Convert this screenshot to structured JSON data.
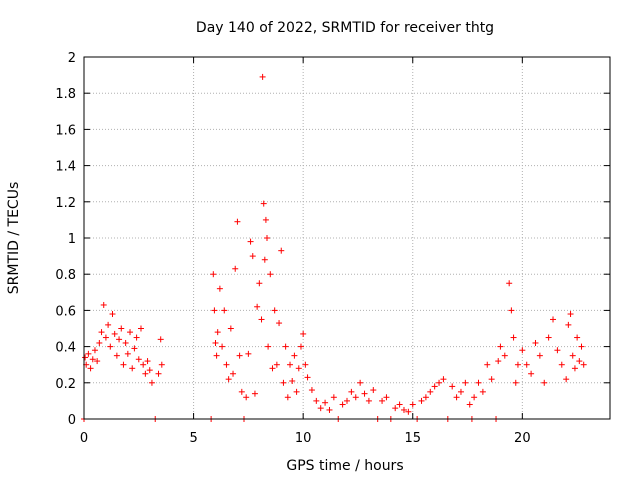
{
  "chart_data": {
    "type": "scatter",
    "title": "Day 140 of 2022, SRMTID for receiver thtg",
    "xlabel": "GPS time / hours",
    "ylabel": "SRMTID / TECUs",
    "xlim": [
      0,
      24
    ],
    "ylim": [
      0,
      2
    ],
    "grid": true,
    "marker": "+",
    "series_color": "#ff0000",
    "x_ticks": [
      {
        "value": 0,
        "label": "0"
      },
      {
        "value": 5,
        "label": "5"
      },
      {
        "value": 10,
        "label": "10"
      },
      {
        "value": 15,
        "label": "15"
      },
      {
        "value": 20,
        "label": "20"
      }
    ],
    "y_ticks": [
      {
        "value": 0,
        "label": "0"
      },
      {
        "value": 0.2,
        "label": "0.2"
      },
      {
        "value": 0.4,
        "label": "0.4"
      },
      {
        "value": 0.6,
        "label": "0.6"
      },
      {
        "value": 0.8,
        "label": "0.8"
      },
      {
        "value": 1,
        "label": "1"
      },
      {
        "value": 1.2,
        "label": "1.2"
      },
      {
        "value": 1.4,
        "label": "1.4"
      },
      {
        "value": 1.6,
        "label": "1.6"
      },
      {
        "value": 1.8,
        "label": "1.8"
      },
      {
        "value": 2,
        "label": "2"
      }
    ],
    "points": [
      [
        0.0,
        0.0
      ],
      [
        0.05,
        0.34
      ],
      [
        0.1,
        0.3
      ],
      [
        0.2,
        0.36
      ],
      [
        0.3,
        0.28
      ],
      [
        0.4,
        0.33
      ],
      [
        0.5,
        0.38
      ],
      [
        0.6,
        0.32
      ],
      [
        0.7,
        0.42
      ],
      [
        0.8,
        0.48
      ],
      [
        0.9,
        0.63
      ],
      [
        1.0,
        0.45
      ],
      [
        1.1,
        0.52
      ],
      [
        1.2,
        0.4
      ],
      [
        1.3,
        0.58
      ],
      [
        1.4,
        0.47
      ],
      [
        1.5,
        0.35
      ],
      [
        1.6,
        0.44
      ],
      [
        1.7,
        0.5
      ],
      [
        1.8,
        0.3
      ],
      [
        1.9,
        0.42
      ],
      [
        2.0,
        0.36
      ],
      [
        2.1,
        0.48
      ],
      [
        2.2,
        0.28
      ],
      [
        2.3,
        0.39
      ],
      [
        2.4,
        0.45
      ],
      [
        2.5,
        0.33
      ],
      [
        2.6,
        0.5
      ],
      [
        2.7,
        0.3
      ],
      [
        2.8,
        0.25
      ],
      [
        2.9,
        0.32
      ],
      [
        3.0,
        0.27
      ],
      [
        3.1,
        0.2
      ],
      [
        3.25,
        0.0
      ],
      [
        3.4,
        0.25
      ],
      [
        3.5,
        0.44
      ],
      [
        3.55,
        0.3
      ],
      [
        5.8,
        0.0
      ],
      [
        5.9,
        0.8
      ],
      [
        5.95,
        0.6
      ],
      [
        6.0,
        0.42
      ],
      [
        6.05,
        0.35
      ],
      [
        6.1,
        0.48
      ],
      [
        6.2,
        0.72
      ],
      [
        6.3,
        0.4
      ],
      [
        6.4,
        0.6
      ],
      [
        6.5,
        0.3
      ],
      [
        6.6,
        0.22
      ],
      [
        6.7,
        0.5
      ],
      [
        6.8,
        0.25
      ],
      [
        6.9,
        0.83
      ],
      [
        7.0,
        1.09
      ],
      [
        7.1,
        0.35
      ],
      [
        7.2,
        0.15
      ],
      [
        7.3,
        0.0
      ],
      [
        7.4,
        0.12
      ],
      [
        7.5,
        0.36
      ],
      [
        7.6,
        0.98
      ],
      [
        7.7,
        0.9
      ],
      [
        7.8,
        0.14
      ],
      [
        7.9,
        0.62
      ],
      [
        8.0,
        0.75
      ],
      [
        8.1,
        0.55
      ],
      [
        8.15,
        1.89
      ],
      [
        8.2,
        1.19
      ],
      [
        8.25,
        0.88
      ],
      [
        8.3,
        1.1
      ],
      [
        8.35,
        1.0
      ],
      [
        8.4,
        0.4
      ],
      [
        8.5,
        0.8
      ],
      [
        8.6,
        0.28
      ],
      [
        8.7,
        0.6
      ],
      [
        8.8,
        0.3
      ],
      [
        8.9,
        0.53
      ],
      [
        9.0,
        0.93
      ],
      [
        9.1,
        0.2
      ],
      [
        9.2,
        0.4
      ],
      [
        9.3,
        0.12
      ],
      [
        9.4,
        0.3
      ],
      [
        9.5,
        0.21
      ],
      [
        9.6,
        0.35
      ],
      [
        9.7,
        0.15
      ],
      [
        9.8,
        0.28
      ],
      [
        9.9,
        0.4
      ],
      [
        10.0,
        0.47
      ],
      [
        10.1,
        0.3
      ],
      [
        10.2,
        0.23
      ],
      [
        10.4,
        0.16
      ],
      [
        10.6,
        0.1
      ],
      [
        10.8,
        0.06
      ],
      [
        11.0,
        0.09
      ],
      [
        11.2,
        0.05
      ],
      [
        11.4,
        0.12
      ],
      [
        11.6,
        0.0
      ],
      [
        11.8,
        0.08
      ],
      [
        12.0,
        0.1
      ],
      [
        12.2,
        0.15
      ],
      [
        12.4,
        0.12
      ],
      [
        12.6,
        0.2
      ],
      [
        12.8,
        0.14
      ],
      [
        13.0,
        0.1
      ],
      [
        13.2,
        0.16
      ],
      [
        13.4,
        0.0
      ],
      [
        13.6,
        0.1
      ],
      [
        13.8,
        0.12
      ],
      [
        14.0,
        0.0
      ],
      [
        14.2,
        0.06
      ],
      [
        14.4,
        0.08
      ],
      [
        14.6,
        0.05
      ],
      [
        14.8,
        0.04
      ],
      [
        15.0,
        0.08
      ],
      [
        15.2,
        0.0
      ],
      [
        15.4,
        0.1
      ],
      [
        15.6,
        0.12
      ],
      [
        15.8,
        0.15
      ],
      [
        16.0,
        0.18
      ],
      [
        16.2,
        0.2
      ],
      [
        16.4,
        0.22
      ],
      [
        16.6,
        0.0
      ],
      [
        16.8,
        0.18
      ],
      [
        17.0,
        0.12
      ],
      [
        17.2,
        0.15
      ],
      [
        17.4,
        0.2
      ],
      [
        17.6,
        0.08
      ],
      [
        17.7,
        0.0
      ],
      [
        17.8,
        0.12
      ],
      [
        18.0,
        0.2
      ],
      [
        18.2,
        0.15
      ],
      [
        18.4,
        0.3
      ],
      [
        18.6,
        0.22
      ],
      [
        18.8,
        0.0
      ],
      [
        18.9,
        0.32
      ],
      [
        19.0,
        0.4
      ],
      [
        19.2,
        0.35
      ],
      [
        19.4,
        0.75
      ],
      [
        19.5,
        0.6
      ],
      [
        19.6,
        0.45
      ],
      [
        19.7,
        0.2
      ],
      [
        19.8,
        0.3
      ],
      [
        20.0,
        0.38
      ],
      [
        20.2,
        0.3
      ],
      [
        20.4,
        0.25
      ],
      [
        20.6,
        0.42
      ],
      [
        20.8,
        0.35
      ],
      [
        21.0,
        0.2
      ],
      [
        21.2,
        0.45
      ],
      [
        21.4,
        0.55
      ],
      [
        21.6,
        0.38
      ],
      [
        21.8,
        0.3
      ],
      [
        22.0,
        0.22
      ],
      [
        22.1,
        0.52
      ],
      [
        22.2,
        0.58
      ],
      [
        22.3,
        0.35
      ],
      [
        22.4,
        0.28
      ],
      [
        22.5,
        0.45
      ],
      [
        22.6,
        0.32
      ],
      [
        22.7,
        0.4
      ],
      [
        22.8,
        0.3
      ]
    ]
  }
}
